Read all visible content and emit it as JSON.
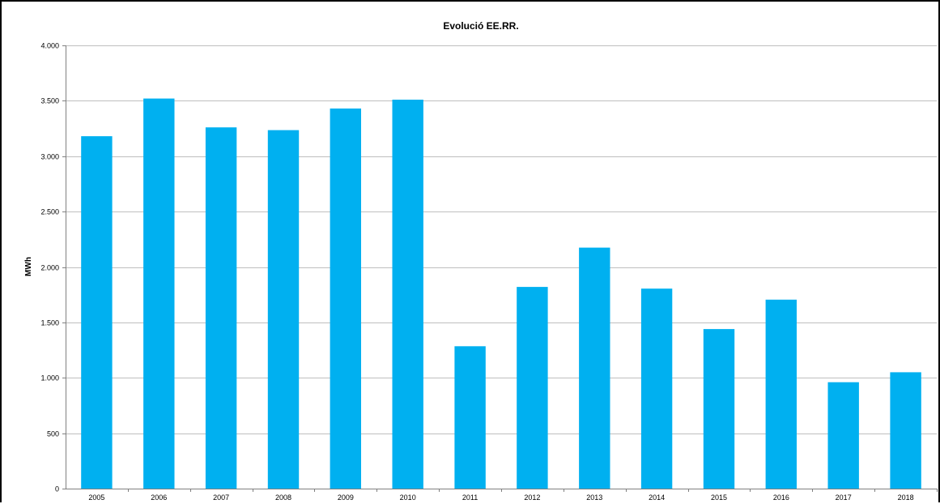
{
  "chart_data": {
    "type": "bar",
    "title": "Evolució  EE.RR.",
    "xlabel": "",
    "ylabel": "MWh",
    "categories": [
      "2005",
      "2006",
      "2007",
      "2008",
      "2009",
      "2010",
      "2011",
      "2012",
      "2013",
      "2014",
      "2015",
      "2016",
      "2017",
      "2018"
    ],
    "values": [
      3180,
      3520,
      3260,
      3235,
      3430,
      3510,
      1285,
      1820,
      2175,
      1805,
      1440,
      1705,
      960,
      1050
    ],
    "ylim": [
      0,
      4000
    ],
    "yticks": [
      0,
      500,
      1000,
      1500,
      2000,
      2500,
      3000,
      3500,
      4000
    ],
    "ytick_labels": [
      "0",
      "500",
      "1.000",
      "1.500",
      "2.000",
      "2.500",
      "3.000",
      "3.500",
      "4.000"
    ],
    "grid": "horizontal",
    "legend": "none",
    "bar_color": "#00B0F0",
    "grid_color": "#BFBFBF",
    "axis_color": "#808080"
  }
}
